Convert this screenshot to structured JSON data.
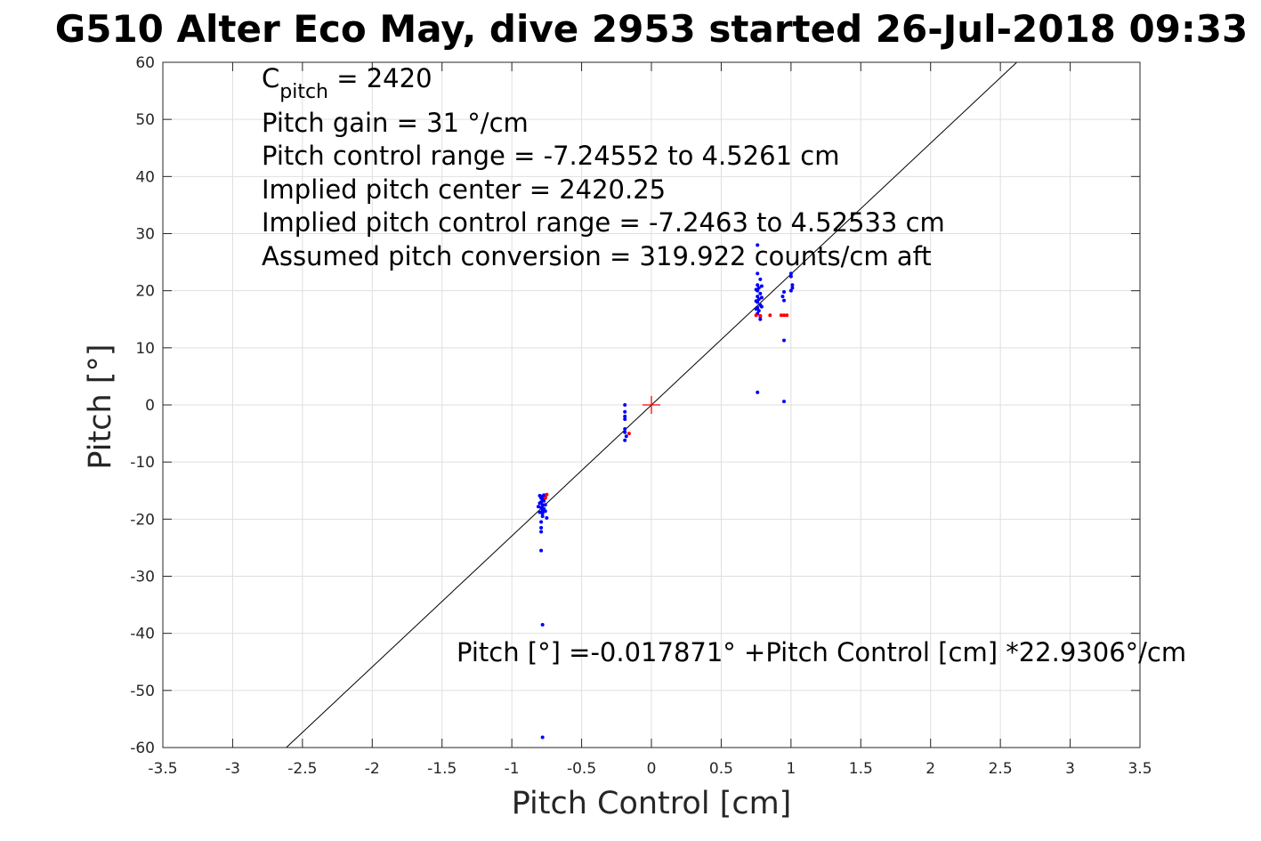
{
  "chart_data": {
    "type": "scatter",
    "title": "G510 Alter Eco May, dive 2953 started 26-Jul-2018 09:33",
    "xlabel": "Pitch Control [cm]",
    "ylabel": "Pitch [°]",
    "xlim": [
      -3.5,
      3.5
    ],
    "ylim": [
      -60,
      60
    ],
    "xticks": [
      -3.5,
      -3,
      -2.5,
      -2,
      -1.5,
      -1,
      -0.5,
      0,
      0.5,
      1,
      1.5,
      2,
      2.5,
      3,
      3.5
    ],
    "yticks": [
      -60,
      -50,
      -40,
      -30,
      -20,
      -10,
      0,
      10,
      20,
      30,
      40,
      50,
      60
    ],
    "grid": true,
    "annotations": {
      "c_pitch_base": "C",
      "c_pitch_sub": "pitch",
      "c_pitch_value": " = 2420",
      "lines": [
        "Pitch gain = 31 °/cm",
        "Pitch control range = -7.24552 to 4.5261 cm",
        "Implied pitch center = 2420.25",
        "Implied pitch control range = -7.2463 to 4.52533 cm",
        "Assumed pitch conversion = 319.922 counts/cm aft"
      ],
      "fit_equation": "Pitch [°] =-0.017871° +Pitch Control [cm] *22.9306°/cm"
    },
    "fit": {
      "intercept": -0.017871,
      "slope": 22.9306,
      "color": "#000000"
    },
    "center_marker": {
      "x": 0,
      "y": 0,
      "color": "#ff0000"
    },
    "series": [
      {
        "color": "#0000ff",
        "points": [
          [
            -0.78,
            -16
          ],
          [
            -0.78,
            -16.5
          ],
          [
            -0.79,
            -17
          ],
          [
            -0.78,
            -17.5
          ],
          [
            -0.79,
            -18
          ],
          [
            -0.78,
            -18.5
          ],
          [
            -0.78,
            -19
          ],
          [
            -0.79,
            -16.3
          ],
          [
            -0.77,
            -16.8
          ],
          [
            -0.8,
            -17.2
          ],
          [
            -0.77,
            -18.2
          ],
          [
            -0.8,
            -18.8
          ],
          [
            -0.78,
            -19.5
          ],
          [
            -0.79,
            -20.5
          ],
          [
            -0.79,
            -21.5
          ],
          [
            -0.79,
            -22.2
          ],
          [
            -0.75,
            -19.8
          ],
          [
            -0.79,
            -25.5
          ],
          [
            -0.78,
            -38.5
          ],
          [
            -0.78,
            -58.2
          ],
          [
            -0.76,
            -16.2
          ],
          [
            -0.76,
            -17.5
          ],
          [
            -0.77,
            -15.8
          ],
          [
            -0.8,
            -15.9
          ],
          [
            -0.81,
            -17.8
          ],
          [
            -0.76,
            -18.6
          ],
          [
            -0.19,
            0
          ],
          [
            -0.19,
            -1.2
          ],
          [
            -0.19,
            -2
          ],
          [
            -0.19,
            -2.5
          ],
          [
            -0.19,
            -4.2
          ],
          [
            -0.19,
            -4.8
          ],
          [
            -0.18,
            -5.5
          ],
          [
            -0.19,
            -6.2
          ],
          [
            0.76,
            28
          ],
          [
            0.76,
            23
          ],
          [
            0.78,
            22
          ],
          [
            0.76,
            21
          ],
          [
            0.77,
            20.5
          ],
          [
            0.76,
            20
          ],
          [
            0.78,
            19.5
          ],
          [
            0.76,
            19
          ],
          [
            0.77,
            18.5
          ],
          [
            0.76,
            18
          ],
          [
            0.78,
            17.5
          ],
          [
            0.76,
            17
          ],
          [
            0.77,
            16.5
          ],
          [
            0.76,
            16
          ],
          [
            0.78,
            15.5
          ],
          [
            0.78,
            15
          ],
          [
            0.76,
            2.2
          ],
          [
            0.75,
            20.2
          ],
          [
            0.75,
            18.2
          ],
          [
            0.79,
            20.8
          ],
          [
            0.79,
            18.8
          ],
          [
            0.79,
            17.2
          ],
          [
            0.75,
            16.8
          ],
          [
            0.94,
            19
          ],
          [
            0.95,
            19.8
          ],
          [
            0.95,
            18.3
          ],
          [
            0.95,
            11.3
          ],
          [
            0.95,
            0.6
          ],
          [
            1,
            22.5
          ],
          [
            1,
            23
          ],
          [
            1.01,
            21
          ],
          [
            1.01,
            20.5
          ],
          [
            1,
            20
          ]
        ]
      },
      {
        "color": "#ff0000",
        "points": [
          [
            -0.75,
            -15.7
          ],
          [
            -0.76,
            -16.3
          ],
          [
            -0.16,
            -5
          ],
          [
            0.75,
            15.7
          ],
          [
            0.78,
            15.6
          ],
          [
            0.85,
            15.7
          ],
          [
            0.93,
            15.7
          ],
          [
            0.95,
            15.7
          ],
          [
            0.97,
            15.7
          ]
        ]
      }
    ]
  }
}
